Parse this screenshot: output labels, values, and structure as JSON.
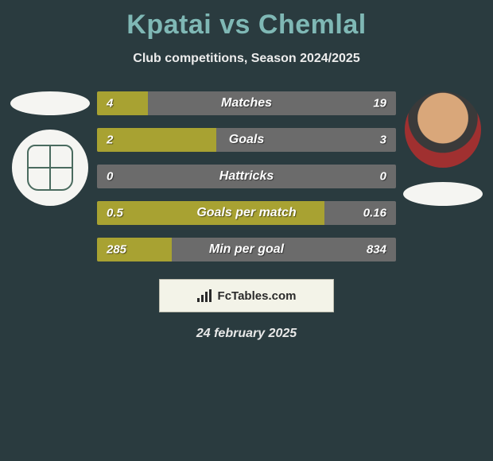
{
  "title": "Kpatai vs Chemlal",
  "subtitle": "Club competitions, Season 2024/2025",
  "date": "24 february 2025",
  "logo_text": "FcTables.com",
  "background_color": "#2a3b3f",
  "title_color": "#7fb8b5",
  "bar_left_color": "#a8a232",
  "bar_right_color": "#6b6b6b",
  "text_color": "#ffffff",
  "bars": [
    {
      "label": "Matches",
      "left": "4",
      "right": "19",
      "left_pct": 17
    },
    {
      "label": "Goals",
      "left": "2",
      "right": "3",
      "left_pct": 40
    },
    {
      "label": "Hattricks",
      "left": "0",
      "right": "0",
      "left_pct": 0
    },
    {
      "label": "Goals per match",
      "left": "0.5",
      "right": "0.16",
      "left_pct": 76
    },
    {
      "label": "Min per goal",
      "left": "285",
      "right": "834",
      "left_pct": 25
    }
  ],
  "player_left_has_photo": false,
  "player_right_has_photo": true
}
